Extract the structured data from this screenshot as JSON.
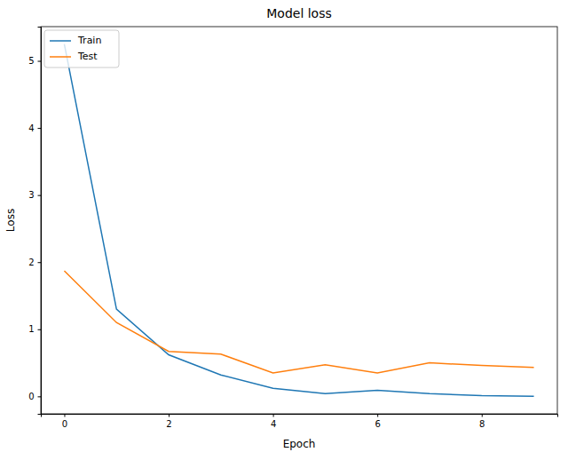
{
  "chart_data": {
    "type": "line",
    "title": "Model loss",
    "x_label": "Epoch",
    "y_label": "Loss",
    "x": [
      0,
      1,
      2,
      3,
      4,
      5,
      6,
      7,
      8,
      9
    ],
    "series": [
      {
        "name": "Train",
        "color": "#1f77b4",
        "values": [
          5.25,
          1.3,
          0.62,
          0.32,
          0.12,
          0.04,
          0.09,
          0.04,
          0.01,
          0.0
        ]
      },
      {
        "name": "Test",
        "color": "#ff7f0e",
        "values": [
          1.87,
          1.1,
          0.67,
          0.63,
          0.35,
          0.47,
          0.35,
          0.5,
          0.46,
          0.43
        ]
      }
    ],
    "xlim": [
      -0.45,
      9.45
    ],
    "xticks": [
      0,
      2,
      4,
      6,
      8
    ],
    "ylim": [
      -0.26,
      5.51
    ],
    "yticks": [
      0,
      1,
      2,
      3,
      4,
      5
    ],
    "grid": false,
    "legend": "upper left"
  }
}
